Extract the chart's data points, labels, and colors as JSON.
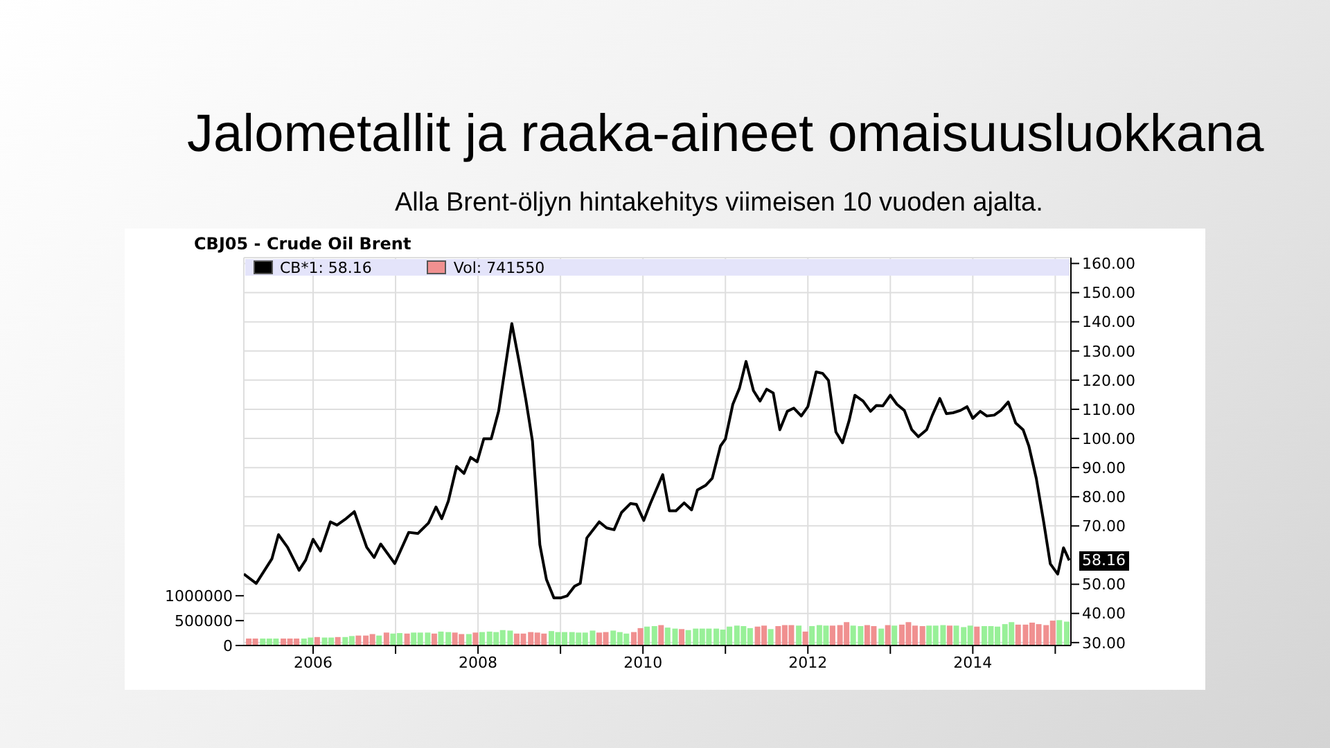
{
  "chart_data": {
    "type": "line",
    "title": "Jalometallit ja raaka-aineet omaisuusluokkana",
    "subtitle": "Alla Brent-öljyn hintakehitys viimeisen 10 vuoden ajalta.",
    "annotations": [
      "CBJ05 - Crude Oil Brent",
      {
        "text": "58.16",
        "x": 2015.17,
        "y": 58.16
      }
    ],
    "xlim": [
      2005.16,
      2015.19
    ],
    "xticks": [
      2006,
      {
        "value": 2007,
        "label": null
      },
      2008,
      {
        "value": 2009,
        "label": null
      },
      2010,
      {
        "value": 2011,
        "label": null
      },
      2012,
      {
        "value": 2013,
        "label": null
      },
      2014,
      {
        "value": 2015,
        "label": null
      }
    ],
    "ylim": [
      29,
      162
    ],
    "yticks": [
      {
        "value": 30,
        "label": "30.00"
      },
      {
        "value": 40,
        "label": "40.00"
      },
      {
        "value": 50,
        "label": "50.00"
      },
      {
        "value": 70,
        "label": "70.00"
      },
      {
        "value": 80,
        "label": "80.00"
      },
      {
        "value": 90,
        "label": "90.00"
      },
      {
        "value": 100,
        "label": "100.00"
      },
      {
        "value": 110,
        "label": "110.00"
      },
      {
        "value": 120,
        "label": "120.00"
      },
      {
        "value": 130,
        "label": "130.00"
      },
      {
        "value": 140,
        "label": "140.00"
      },
      {
        "value": 150,
        "label": "150.00"
      },
      {
        "value": 160,
        "label": "160.00"
      }
    ],
    "y2lim": [
      0,
      7800000
    ],
    "y2ticks": [
      0,
      500000,
      1000000
    ],
    "grid": true,
    "legend": "top left",
    "series": [
      {
        "name": "CB*1: 58.16",
        "color": "#000000",
        "x": [
          2005.16,
          2005.31,
          2005.5,
          2005.58,
          2005.69,
          2005.83,
          2005.91,
          2006.0,
          2006.09,
          2006.21,
          2006.29,
          2006.4,
          2006.5,
          2006.65,
          2006.74,
          2006.82,
          2006.99,
          2007.16,
          2007.27,
          2007.4,
          2007.49,
          2007.56,
          2007.64,
          2007.74,
          2007.83,
          2007.91,
          2007.99,
          2008.07,
          2008.16,
          2008.25,
          2008.41,
          2008.5,
          2008.58,
          2008.66,
          2008.75,
          2008.83,
          2008.92,
          2009.0,
          2009.08,
          2009.17,
          2009.24,
          2009.32,
          2009.47,
          2009.56,
          2009.65,
          2009.74,
          2009.85,
          2009.92,
          2010.01,
          2010.09,
          2010.24,
          2010.32,
          2010.4,
          2010.5,
          2010.59,
          2010.66,
          2010.76,
          2010.84,
          2010.94,
          2011.0,
          2011.09,
          2011.17,
          2011.25,
          2011.34,
          2011.42,
          2011.5,
          2011.58,
          2011.66,
          2011.75,
          2011.83,
          2011.92,
          2012.0,
          2012.1,
          2012.18,
          2012.25,
          2012.34,
          2012.42,
          2012.5,
          2012.57,
          2012.67,
          2012.76,
          2012.83,
          2012.91,
          2013.0,
          2013.08,
          2013.17,
          2013.26,
          2013.34,
          2013.44,
          2013.51,
          2013.6,
          2013.68,
          2013.76,
          2013.85,
          2013.93,
          2014.0,
          2014.09,
          2014.17,
          2014.26,
          2014.34,
          2014.43,
          2014.52,
          2014.61,
          2014.68,
          2014.77,
          2014.86,
          2014.94,
          2015.03,
          2015.1,
          2015.17
        ],
        "values": [
          53.5,
          50.3,
          58.7,
          67.0,
          62.7,
          54.8,
          58.3,
          65.4,
          61.4,
          71.4,
          70.3,
          72.5,
          74.9,
          62.7,
          59.2,
          63.8,
          57.1,
          67.8,
          67.4,
          71.0,
          76.5,
          72.5,
          78.5,
          90.4,
          88.0,
          93.5,
          92.0,
          99.9,
          99.9,
          109.4,
          139.4,
          126.0,
          113.3,
          99.1,
          63.5,
          51.6,
          45.3,
          45.3,
          46.0,
          49.3,
          50.3,
          65.9,
          71.4,
          69.3,
          68.7,
          74.6,
          77.7,
          77.4,
          71.9,
          77.7,
          87.6,
          75.2,
          75.2,
          77.9,
          75.5,
          82.3,
          83.9,
          86.3,
          97.4,
          99.8,
          111.7,
          117.2,
          126.4,
          116.4,
          112.8,
          116.9,
          115.6,
          103.0,
          109.3,
          110.4,
          107.7,
          110.9,
          122.8,
          122.3,
          119.9,
          102.2,
          98.5,
          106.1,
          114.8,
          112.8,
          109.3,
          111.3,
          111.2,
          114.8,
          111.7,
          109.6,
          103.0,
          100.6,
          103.0,
          108.0,
          113.7,
          108.5,
          108.8,
          109.6,
          110.9,
          106.9,
          109.3,
          107.7,
          108.0,
          109.6,
          112.5,
          105.3,
          103.0,
          97.4,
          86.3,
          71.3,
          57.0,
          53.5,
          62.5,
          58.2
        ]
      },
      {
        "name": "Vol: 741550",
        "type": "bar",
        "axis": "y2",
        "color": "#f09090",
        "x": [
          2005.22,
          2005.3,
          2005.39,
          2005.47,
          2005.55,
          2005.64,
          2005.72,
          2005.8,
          2005.89,
          2005.97,
          2006.05,
          2006.14,
          2006.22,
          2006.3,
          2006.39,
          2006.47,
          2006.55,
          2006.64,
          2006.72,
          2006.8,
          2006.89,
          2006.97,
          2007.05,
          2007.14,
          2007.22,
          2007.3,
          2007.39,
          2007.47,
          2007.55,
          2007.64,
          2007.72,
          2007.8,
          2007.89,
          2007.97,
          2008.05,
          2008.14,
          2008.22,
          2008.3,
          2008.39,
          2008.47,
          2008.55,
          2008.64,
          2008.72,
          2008.8,
          2008.89,
          2008.97,
          2009.05,
          2009.14,
          2009.22,
          2009.3,
          2009.39,
          2009.47,
          2009.55,
          2009.64,
          2009.72,
          2009.8,
          2009.89,
          2009.97,
          2010.05,
          2010.14,
          2010.22,
          2010.3,
          2010.39,
          2010.47,
          2010.55,
          2010.64,
          2010.72,
          2010.8,
          2010.89,
          2010.97,
          2011.05,
          2011.14,
          2011.22,
          2011.3,
          2011.39,
          2011.47,
          2011.55,
          2011.64,
          2011.72,
          2011.8,
          2011.89,
          2011.97,
          2012.05,
          2012.14,
          2012.22,
          2012.3,
          2012.39,
          2012.47,
          2012.55,
          2012.64,
          2012.72,
          2012.8,
          2012.89,
          2012.97,
          2013.05,
          2013.14,
          2013.22,
          2013.3,
          2013.39,
          2013.47,
          2013.55,
          2013.64,
          2013.72,
          2013.8,
          2013.89,
          2013.97,
          2014.05,
          2014.14,
          2014.22,
          2014.3,
          2014.39,
          2014.47,
          2014.55,
          2014.64,
          2014.72,
          2014.8,
          2014.89,
          2014.97,
          2015.05,
          2015.14
        ],
        "values": [
          140000,
          140000,
          140000,
          140000,
          140000,
          140000,
          140000,
          140000,
          140000,
          160000,
          170000,
          160000,
          160000,
          170000,
          170000,
          190000,
          200000,
          200000,
          230000,
          200000,
          260000,
          240000,
          250000,
          240000,
          260000,
          260000,
          260000,
          240000,
          280000,
          270000,
          260000,
          230000,
          230000,
          260000,
          270000,
          280000,
          270000,
          310000,
          300000,
          240000,
          240000,
          270000,
          260000,
          240000,
          290000,
          270000,
          270000,
          270000,
          260000,
          260000,
          300000,
          260000,
          270000,
          300000,
          270000,
          240000,
          270000,
          350000,
          380000,
          390000,
          410000,
          360000,
          340000,
          330000,
          310000,
          340000,
          340000,
          340000,
          340000,
          320000,
          380000,
          400000,
          390000,
          350000,
          380000,
          400000,
          330000,
          390000,
          410000,
          410000,
          400000,
          280000,
          390000,
          410000,
          400000,
          400000,
          410000,
          470000,
          400000,
          390000,
          410000,
          390000,
          340000,
          410000,
          400000,
          420000,
          470000,
          400000,
          390000,
          400000,
          400000,
          410000,
          400000,
          400000,
          370000,
          400000,
          380000,
          390000,
          390000,
          380000,
          430000,
          470000,
          420000,
          420000,
          460000,
          430000,
          410000,
          500000,
          510000,
          480000
        ],
        "colors": [
          "#f09090",
          "#f09090",
          "#98f098",
          "#98f098",
          "#98f098",
          "#f09090",
          "#f09090",
          "#f09090",
          "#98f098",
          "#98f098",
          "#f09090",
          "#98f098",
          "#98f098",
          "#f09090",
          "#98f098",
          "#98f098",
          "#f09090",
          "#f09090",
          "#f09090",
          "#98f098",
          "#f09090",
          "#98f098",
          "#98f098",
          "#f09090",
          "#98f098",
          "#98f098",
          "#98f098",
          "#f09090",
          "#98f098",
          "#98f098",
          "#f09090",
          "#f09090",
          "#98f098",
          "#f09090",
          "#98f098",
          "#98f098",
          "#98f098",
          "#98f098",
          "#98f098",
          "#f09090",
          "#f09090",
          "#f09090",
          "#f09090",
          "#f09090",
          "#98f098",
          "#98f098",
          "#98f098",
          "#98f098",
          "#98f098",
          "#98f098",
          "#98f098",
          "#f09090",
          "#f09090",
          "#98f098",
          "#98f098",
          "#98f098",
          "#f09090",
          "#f09090",
          "#98f098",
          "#98f098",
          "#f09090",
          "#98f098",
          "#98f098",
          "#f09090",
          "#98f098",
          "#98f098",
          "#98f098",
          "#98f098",
          "#98f098",
          "#98f098",
          "#98f098",
          "#98f098",
          "#98f098",
          "#98f098",
          "#f09090",
          "#f09090",
          "#98f098",
          "#f09090",
          "#f09090",
          "#f09090",
          "#98f098",
          "#f09090",
          "#98f098",
          "#98f098",
          "#98f098",
          "#f09090",
          "#f09090",
          "#f09090",
          "#98f098",
          "#98f098",
          "#f09090",
          "#f09090",
          "#98f098",
          "#f09090",
          "#98f098",
          "#f09090",
          "#f09090",
          "#f09090",
          "#f09090",
          "#98f098",
          "#98f098",
          "#98f098",
          "#f09090",
          "#98f098",
          "#98f098",
          "#98f098",
          "#f09090",
          "#98f098",
          "#98f098",
          "#98f098",
          "#98f098",
          "#98f098",
          "#f09090",
          "#f09090",
          "#f09090",
          "#f09090",
          "#f09090",
          "#f09090",
          "#98f098",
          "#98f098"
        ]
      }
    ]
  }
}
